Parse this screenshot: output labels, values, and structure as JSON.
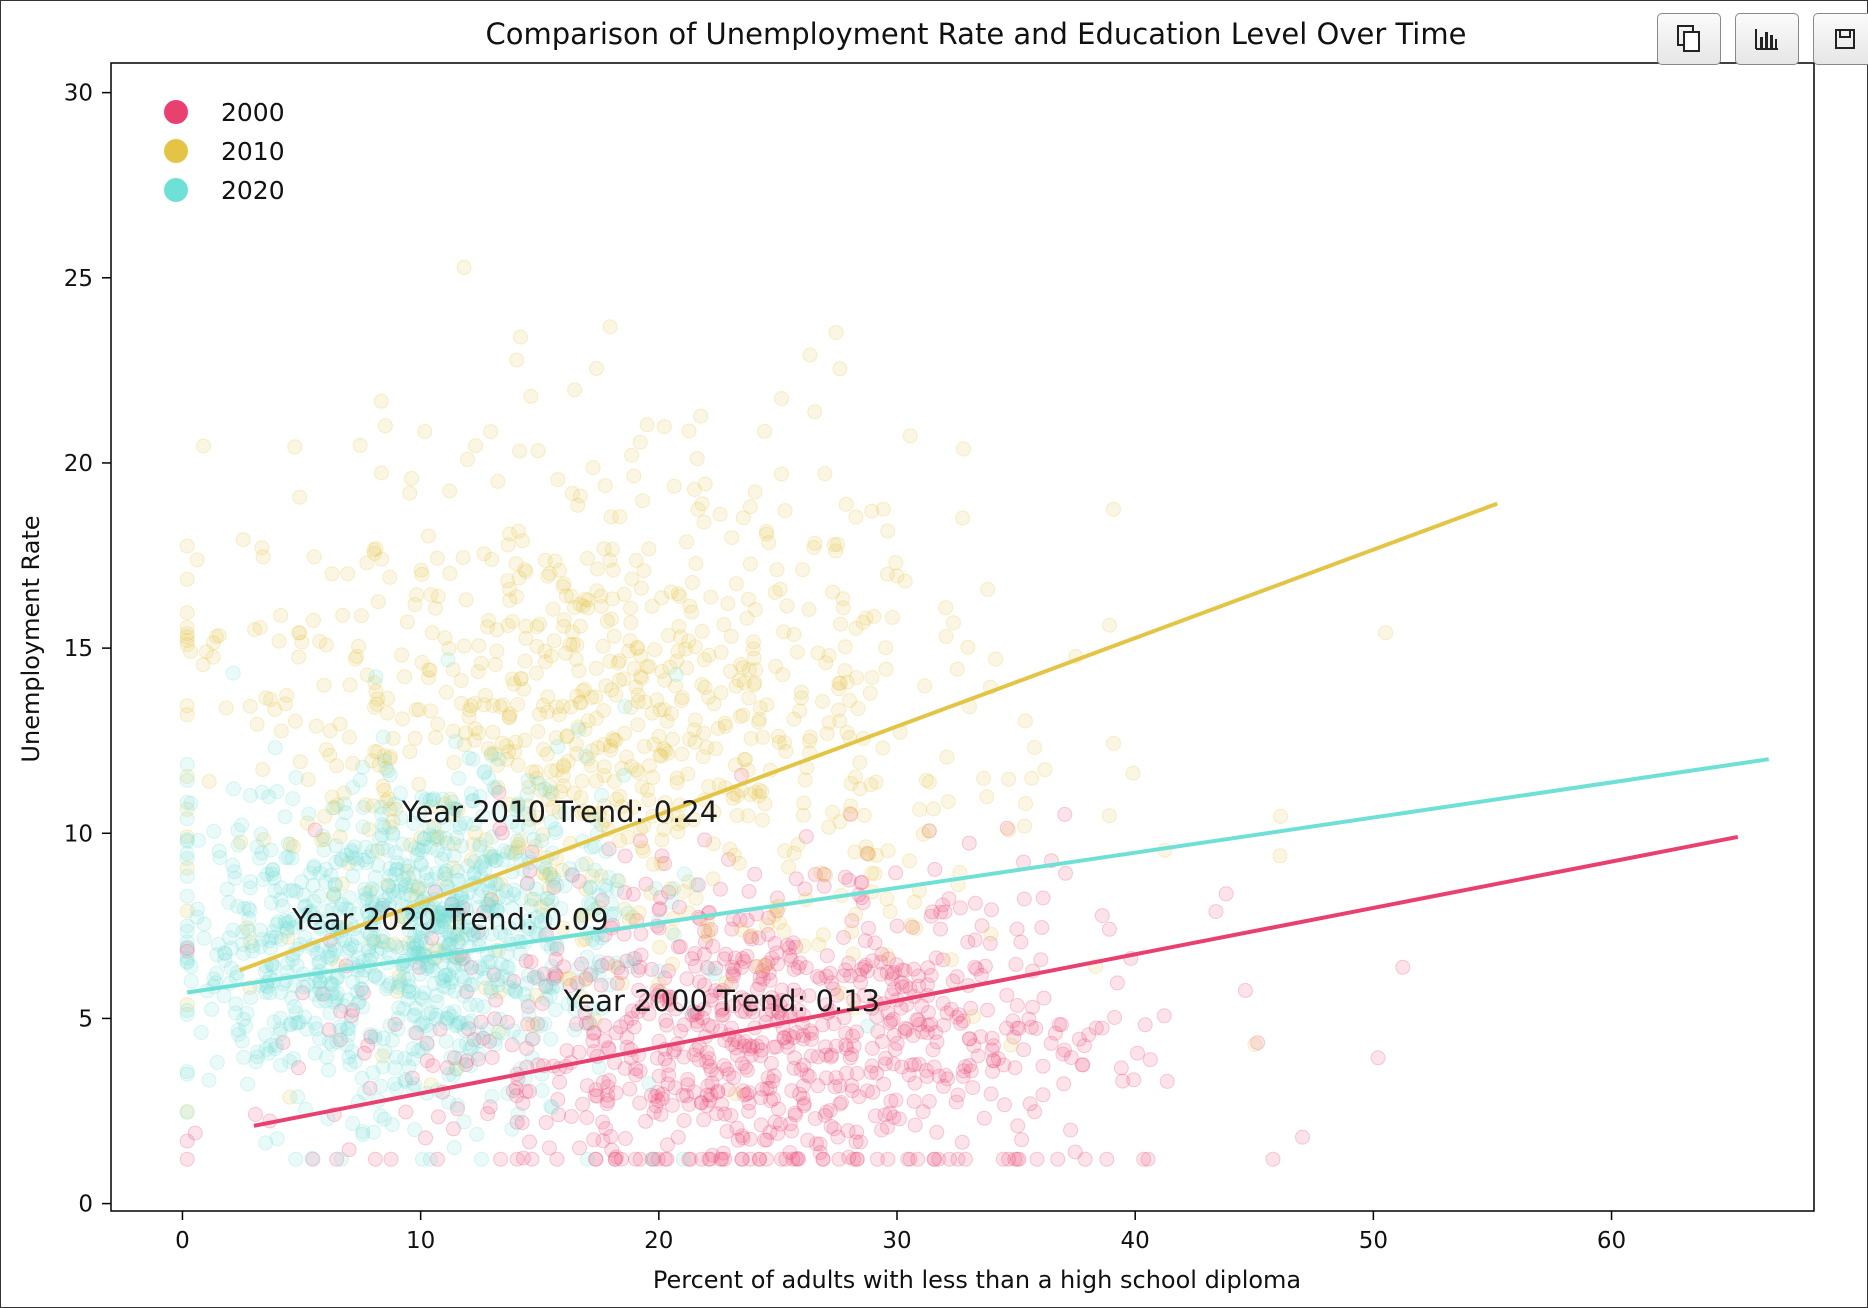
{
  "toolbar": {
    "buttons": [
      {
        "name": "copy-button",
        "icon": "copy-icon"
      },
      {
        "name": "chart-button",
        "icon": "bar-chart-icon"
      },
      {
        "name": "save-button",
        "icon": "save-icon"
      }
    ]
  },
  "chart_data": {
    "type": "scatter",
    "title": "Comparison of Unemployment Rate and Education Level Over Time",
    "xlabel": "Percent of adults with less than a high school diploma",
    "ylabel": "Unemployment Rate",
    "xlim": [
      -3,
      68.5
    ],
    "ylim": [
      -0.2,
      30.8
    ],
    "xticks": [
      0,
      10,
      20,
      30,
      40,
      50,
      60
    ],
    "yticks": [
      0,
      5,
      10,
      15,
      20,
      25,
      30
    ],
    "grid": false,
    "legend": {
      "placement": "top-left",
      "entries": [
        "2000",
        "2010",
        "2020"
      ]
    },
    "series": [
      {
        "name": "2000",
        "color": "#e8416f",
        "alpha": 0.15,
        "cluster": {
          "x_mean": 24,
          "x_sd": 8,
          "y_mean": 4.2,
          "y_sd": 2.2,
          "count": 900
        },
        "trend": {
          "x0": 3,
          "y0": 2.1,
          "x1": 65.3,
          "y1": 9.9,
          "label": "Year 2000 Trend: 0.13",
          "label_x": 16,
          "label_y": 5.2
        }
      },
      {
        "name": "2010",
        "color": "#e3c445",
        "alpha": 0.15,
        "cluster": {
          "x_mean": 18,
          "x_sd": 8.5,
          "y_mean": 12.5,
          "y_sd": 3.6,
          "count": 900
        },
        "trend": {
          "x0": 2.4,
          "y0": 6.3,
          "x1": 55.2,
          "y1": 18.9,
          "label": "Year 2010 Trend: 0.24",
          "label_x": 9.2,
          "label_y": 10.3
        }
      },
      {
        "name": "2020",
        "color": "#6fe0d6",
        "alpha": 0.15,
        "cluster": {
          "x_mean": 9.5,
          "x_sd": 4.5,
          "y_mean": 6.8,
          "y_sd": 2.2,
          "count": 1000
        },
        "trend": {
          "x0": 0.2,
          "y0": 5.7,
          "x1": 66.6,
          "y1": 12.0,
          "label": "Year 2020 Trend: 0.09",
          "label_x": 4.6,
          "label_y": 7.4
        }
      }
    ]
  }
}
